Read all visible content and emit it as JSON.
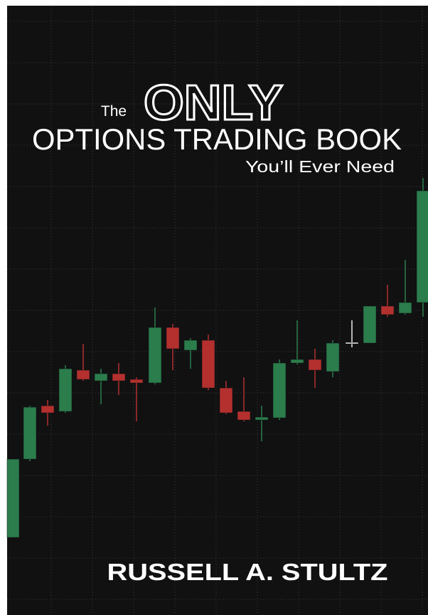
{
  "cover": {
    "title_the": "The",
    "title_only": "ONLY",
    "title_main": "OPTIONS TRADING BOOK",
    "title_sub": "You’ll Ever Need",
    "author": "RUSSELL A. STULTZ"
  }
}
